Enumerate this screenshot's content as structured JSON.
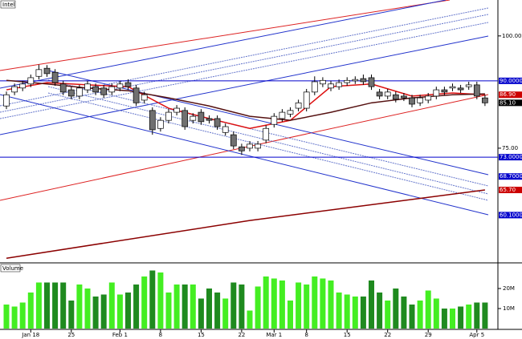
{
  "chart_data": {
    "type": "candlestick",
    "title": "Intel",
    "volume_title": "Volume",
    "categories": [
      null,
      null,
      null,
      "Jan 18",
      null,
      null,
      null,
      null,
      "25",
      null,
      null,
      null,
      null,
      null,
      "Feb 1",
      null,
      null,
      null,
      null,
      "8",
      null,
      null,
      null,
      null,
      "15",
      null,
      null,
      null,
      null,
      "22",
      null,
      null,
      null,
      "Mar 1",
      null,
      null,
      null,
      "8",
      null,
      null,
      null,
      null,
      "15",
      null,
      null,
      null,
      null,
      "22",
      null,
      null,
      null,
      null,
      "29",
      null,
      null,
      null,
      null,
      null,
      "Apr 5",
      null
    ],
    "open": [
      84.4,
      87.5,
      88.4,
      89.3,
      91.0,
      92.8,
      91.9,
      89.3,
      88.0,
      86.6,
      88.0,
      88.7,
      88.4,
      87.5,
      88.4,
      89.6,
      88.4,
      85.7,
      83.4,
      79.4,
      81.2,
      83.0,
      83.4,
      81.2,
      83.0,
      81.6,
      81.6,
      78.5,
      78.0,
      75.3,
      75.0,
      75.0,
      76.8,
      80.3,
      81.6,
      82.6,
      83.9,
      83.9,
      87.5,
      89.3,
      88.4,
      88.7,
      89.6,
      90.0,
      90.5,
      90.7,
      87.5,
      86.6,
      86.9,
      86.6,
      86.2,
      85.1,
      85.7,
      86.6,
      88.0,
      88.4,
      88.4,
      88.7,
      89.1,
      86.2
    ],
    "high": [
      87.6,
      89.4,
      90.0,
      91.4,
      93.6,
      93.5,
      92.6,
      90.0,
      88.7,
      89.1,
      90.0,
      89.4,
      89.1,
      89.4,
      90.0,
      90.3,
      89.1,
      87.6,
      84.1,
      81.9,
      83.7,
      84.6,
      84.1,
      82.8,
      83.7,
      82.3,
      82.3,
      80.5,
      78.7,
      76.0,
      76.6,
      76.6,
      80.1,
      82.8,
      83.7,
      84.1,
      85.8,
      88.2,
      91.0,
      90.8,
      90.0,
      90.3,
      90.8,
      91.0,
      91.4,
      91.4,
      88.2,
      88.2,
      87.6,
      87.3,
      86.9,
      86.9,
      87.3,
      88.7,
      88.7,
      89.4,
      89.1,
      89.8,
      89.8,
      86.9
    ],
    "low": [
      83.7,
      86.8,
      87.7,
      88.6,
      90.3,
      90.9,
      88.9,
      86.8,
      85.9,
      85.9,
      87.3,
      86.8,
      86.2,
      86.8,
      87.7,
      88.0,
      84.4,
      85.0,
      78.0,
      78.7,
      80.5,
      82.3,
      79.1,
      80.5,
      80.2,
      80.5,
      79.1,
      77.8,
      74.8,
      73.5,
      74.3,
      74.3,
      76.1,
      79.6,
      80.9,
      81.9,
      83.2,
      83.2,
      86.8,
      88.6,
      87.7,
      88.0,
      88.9,
      89.3,
      89.1,
      88.0,
      85.9,
      85.9,
      85.2,
      85.5,
      84.1,
      84.4,
      85.0,
      85.9,
      86.8,
      87.7,
      87.3,
      88.0,
      85.9,
      84.4
    ],
    "close": [
      86.9,
      88.7,
      89.3,
      90.7,
      92.5,
      91.6,
      89.6,
      87.5,
      86.6,
      88.4,
      89.3,
      87.5,
      86.9,
      88.7,
      89.3,
      88.7,
      85.1,
      86.9,
      79.1,
      81.2,
      83.0,
      83.9,
      79.8,
      82.1,
      80.9,
      81.2,
      79.8,
      79.8,
      75.5,
      74.4,
      75.9,
      75.9,
      79.4,
      82.1,
      83.0,
      83.4,
      85.1,
      87.5,
      89.8,
      90.1,
      89.3,
      89.6,
      90.1,
      90.3,
      89.8,
      88.7,
      86.6,
      87.5,
      85.9,
      86.2,
      84.8,
      86.2,
      86.6,
      88.0,
      87.5,
      88.7,
      88.0,
      89.1,
      86.6,
      85.1
    ],
    "volume": [
      12,
      11,
      13,
      18,
      23,
      23,
      23,
      23,
      14,
      22,
      20,
      16,
      17,
      23,
      17,
      18,
      22,
      26,
      29,
      28,
      18,
      22,
      22,
      22,
      15,
      20,
      18,
      15,
      23,
      22,
      9,
      21,
      26,
      25,
      24,
      14,
      23,
      22,
      26,
      25,
      24,
      18,
      17,
      16,
      16,
      24,
      18,
      14,
      20,
      16,
      12,
      14,
      19,
      15,
      10,
      10,
      11,
      12,
      13,
      13
    ],
    "up_color": "#ffffff",
    "down_color": "#707070",
    "volume_up_color": "#44ee22",
    "volume_down_color": "#1f8a1f",
    "overlays": [
      {
        "color": "#dd1111",
        "x": [
          0,
          5,
          10,
          15,
          20,
          25,
          30,
          35,
          40,
          45,
          50,
          55,
          59
        ],
        "values": [
          88.0,
          89.6,
          89.1,
          88.7,
          83.9,
          81.6,
          79.4,
          81.2,
          88.7,
          89.3,
          86.6,
          87.3,
          86.9
        ]
      },
      {
        "color": "#551111",
        "x": [
          0,
          5,
          10,
          15,
          20,
          25,
          30,
          35,
          40,
          45,
          50,
          55,
          59
        ],
        "values": [
          90.1,
          89.3,
          88.4,
          87.8,
          86.2,
          84.4,
          82.1,
          81.2,
          83.0,
          85.1,
          86.2,
          86.9,
          87.1
        ]
      },
      {
        "color": "#8b0000",
        "x": [
          0,
          30,
          59
        ],
        "values": [
          50.5,
          58.9,
          65.7
        ]
      }
    ],
    "levels": [
      {
        "value": 90.0,
        "label": "90.0000",
        "color": "#0000cc"
      },
      {
        "value": 73.0,
        "label": "73.0000",
        "color": "#0000cc"
      }
    ],
    "price_labels": [
      {
        "value": 86.9,
        "label": "86.90",
        "color": "#cc0000"
      },
      {
        "value": 85.1,
        "label": "85.10",
        "color": "#000000"
      },
      {
        "value": 68.7,
        "label": "68.7000",
        "color": "#0000cc"
      },
      {
        "value": 65.7,
        "label": "65.70",
        "color": "#cc0000"
      },
      {
        "value": 60.1,
        "label": "60.1000",
        "color": "#0000cc"
      }
    ],
    "ylim": [
      50,
      108
    ],
    "yticks": [
      {
        "value": 100,
        "label": "100.00"
      },
      {
        "value": 75,
        "label": "75.00"
      }
    ],
    "y2lim": [
      0,
      30
    ],
    "y2ticks": [
      {
        "value": 10,
        "label": "10M"
      },
      {
        "value": 20,
        "label": "20M"
      }
    ]
  }
}
